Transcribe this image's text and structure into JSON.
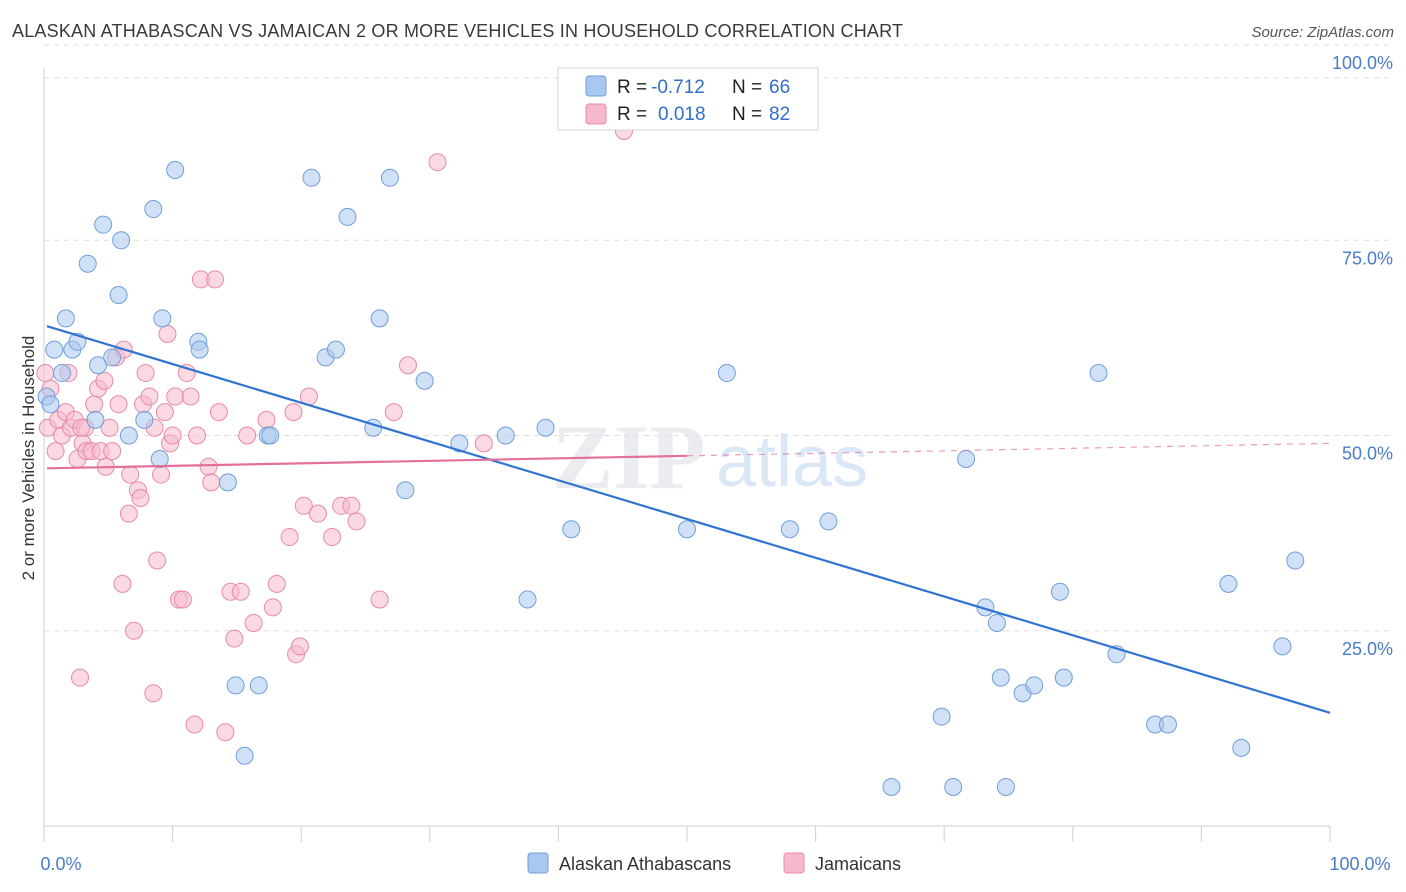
{
  "header": {
    "title": "ALASKAN ATHABASCAN VS JAMAICAN 2 OR MORE VEHICLES IN HOUSEHOLD CORRELATION CHART",
    "source": "Source: ZipAtlas.com"
  },
  "watermark": {
    "zip": "ZIP",
    "atlas": "atlas"
  },
  "stats_legend": {
    "rows": [
      {
        "r_label": "R =",
        "r_value": "-0.712",
        "n_label": "N =",
        "n_value": "66"
      },
      {
        "r_label": "R =",
        "r_value": "0.018",
        "n_label": "N =",
        "n_value": "82"
      }
    ]
  },
  "colors": {
    "blue_fill": "#a9c8f0",
    "blue_stroke": "#6f9fd8",
    "blue_line": "#2f74d0",
    "pink_fill": "#f6b9cc",
    "pink_stroke": "#e98aa8",
    "pink_line": "#e2709a",
    "tick_label": "#4a7cc9",
    "grid": "#dddddd"
  },
  "chart_data": {
    "type": "scatter",
    "title": "ALASKAN ATHABASCAN VS JAMAICAN 2 OR MORE VEHICLES IN HOUSEHOLD CORRELATION CHART",
    "xlabel": "",
    "ylabel": "2 or more Vehicles in Household",
    "xlim": [
      0,
      100
    ],
    "ylim": [
      0,
      105
    ],
    "x_tick_labels": [
      "0.0%",
      "100.0%"
    ],
    "y_ticks": [
      25,
      50,
      75,
      100
    ],
    "y_tick_labels": [
      "25.0%",
      "50.0%",
      "75.0%",
      "100.0%"
    ],
    "grid": true,
    "legend_position": "bottom-center",
    "series": [
      {
        "name": "Alaskan Athabascans",
        "color": "#a9c8f0",
        "points": [
          [
            0.2,
            55
          ],
          [
            0.8,
            61
          ],
          [
            1.4,
            58
          ],
          [
            1.7,
            65
          ],
          [
            2.2,
            61
          ],
          [
            2.6,
            62
          ],
          [
            3.4,
            72
          ],
          [
            4.0,
            52
          ],
          [
            4.2,
            59
          ],
          [
            4.6,
            77
          ],
          [
            5.3,
            60
          ],
          [
            5.8,
            68
          ],
          [
            6.0,
            75
          ],
          [
            6.6,
            50
          ],
          [
            7.8,
            52
          ],
          [
            8.5,
            79
          ],
          [
            9.0,
            47
          ],
          [
            9.2,
            65
          ],
          [
            10.2,
            84
          ],
          [
            12.0,
            62
          ],
          [
            12.1,
            61
          ],
          [
            14.3,
            44
          ],
          [
            14.9,
            18
          ],
          [
            15.6,
            9
          ],
          [
            16.7,
            18
          ],
          [
            17.4,
            50
          ],
          [
            17.6,
            50
          ],
          [
            20.8,
            83
          ],
          [
            21.9,
            60
          ],
          [
            22.7,
            61
          ],
          [
            23.6,
            78
          ],
          [
            25.6,
            51
          ],
          [
            26.1,
            65
          ],
          [
            26.9,
            83
          ],
          [
            28.1,
            43
          ],
          [
            29.6,
            57
          ],
          [
            32.3,
            49
          ],
          [
            35.9,
            50
          ],
          [
            37.6,
            29
          ],
          [
            39.0,
            51
          ],
          [
            41.0,
            38
          ],
          [
            50.0,
            38
          ],
          [
            53.1,
            58
          ],
          [
            58.0,
            38
          ],
          [
            61.0,
            39
          ],
          [
            65.9,
            5
          ],
          [
            69.8,
            14
          ],
          [
            70.7,
            5
          ],
          [
            71.7,
            47
          ],
          [
            73.2,
            28
          ],
          [
            74.1,
            26
          ],
          [
            74.4,
            19
          ],
          [
            74.8,
            5
          ],
          [
            76.1,
            17
          ],
          [
            77.0,
            18
          ],
          [
            79.0,
            30
          ],
          [
            79.3,
            19
          ],
          [
            82.0,
            58
          ],
          [
            83.4,
            22
          ],
          [
            86.4,
            13
          ],
          [
            87.4,
            13
          ],
          [
            92.1,
            31
          ],
          [
            93.1,
            10
          ],
          [
            96.3,
            23
          ],
          [
            97.3,
            34
          ],
          [
            0.5,
            54
          ]
        ]
      },
      {
        "name": "Jamaicans",
        "color": "#f6b9cc",
        "points": [
          [
            0.3,
            51
          ],
          [
            0.5,
            56
          ],
          [
            0.9,
            48
          ],
          [
            1.1,
            52
          ],
          [
            1.4,
            50
          ],
          [
            1.7,
            53
          ],
          [
            1.9,
            58
          ],
          [
            2.1,
            51
          ],
          [
            2.4,
            52
          ],
          [
            2.6,
            47
          ],
          [
            2.8,
            19
          ],
          [
            3.0,
            49
          ],
          [
            3.2,
            51
          ],
          [
            3.3,
            48
          ],
          [
            3.7,
            48
          ],
          [
            3.9,
            54
          ],
          [
            4.2,
            56
          ],
          [
            4.4,
            48
          ],
          [
            4.7,
            57
          ],
          [
            4.8,
            46
          ],
          [
            5.1,
            51
          ],
          [
            5.3,
            48
          ],
          [
            5.6,
            60
          ],
          [
            5.8,
            54
          ],
          [
            6.1,
            31
          ],
          [
            6.2,
            61
          ],
          [
            6.6,
            40
          ],
          [
            6.7,
            45
          ],
          [
            7.0,
            25
          ],
          [
            7.3,
            43
          ],
          [
            7.5,
            42
          ],
          [
            7.7,
            54
          ],
          [
            7.9,
            58
          ],
          [
            8.2,
            55
          ],
          [
            8.5,
            17
          ],
          [
            8.6,
            51
          ],
          [
            8.8,
            34
          ],
          [
            9.1,
            45
          ],
          [
            9.4,
            53
          ],
          [
            9.6,
            63
          ],
          [
            9.8,
            49
          ],
          [
            10.0,
            50
          ],
          [
            10.2,
            55
          ],
          [
            10.5,
            29
          ],
          [
            10.8,
            29
          ],
          [
            11.1,
            58
          ],
          [
            11.4,
            55
          ],
          [
            11.7,
            13
          ],
          [
            11.9,
            50
          ],
          [
            12.2,
            70
          ],
          [
            12.8,
            46
          ],
          [
            13.0,
            44
          ],
          [
            13.3,
            70
          ],
          [
            13.6,
            53
          ],
          [
            14.1,
            12
          ],
          [
            14.5,
            30
          ],
          [
            14.8,
            24
          ],
          [
            15.3,
            30
          ],
          [
            15.8,
            50
          ],
          [
            16.3,
            26
          ],
          [
            17.3,
            52
          ],
          [
            17.8,
            28
          ],
          [
            18.1,
            31
          ],
          [
            19.1,
            37
          ],
          [
            19.4,
            53
          ],
          [
            19.6,
            22
          ],
          [
            19.9,
            23
          ],
          [
            20.2,
            41
          ],
          [
            20.6,
            55
          ],
          [
            21.3,
            40
          ],
          [
            22.4,
            37
          ],
          [
            23.1,
            41
          ],
          [
            23.9,
            41
          ],
          [
            24.3,
            39
          ],
          [
            26.1,
            29
          ],
          [
            27.2,
            53
          ],
          [
            28.3,
            59
          ],
          [
            30.6,
            85
          ],
          [
            34.2,
            49
          ],
          [
            45.1,
            89
          ],
          [
            0.1,
            58
          ],
          [
            2.9,
            51
          ]
        ]
      }
    ],
    "trend_lines": [
      {
        "series": "Alaskan Athabascans",
        "x": [
          0,
          100
        ],
        "y": [
          64.0,
          14.5
        ]
      },
      {
        "series": "Jamaicans",
        "x": [
          0,
          100
        ],
        "y": [
          45.8,
          49.0
        ],
        "solid_until_x": 50
      }
    ]
  },
  "bottom_legend": {
    "items": [
      {
        "label": "Alaskan Athabascans"
      },
      {
        "label": "Jamaicans"
      }
    ]
  }
}
